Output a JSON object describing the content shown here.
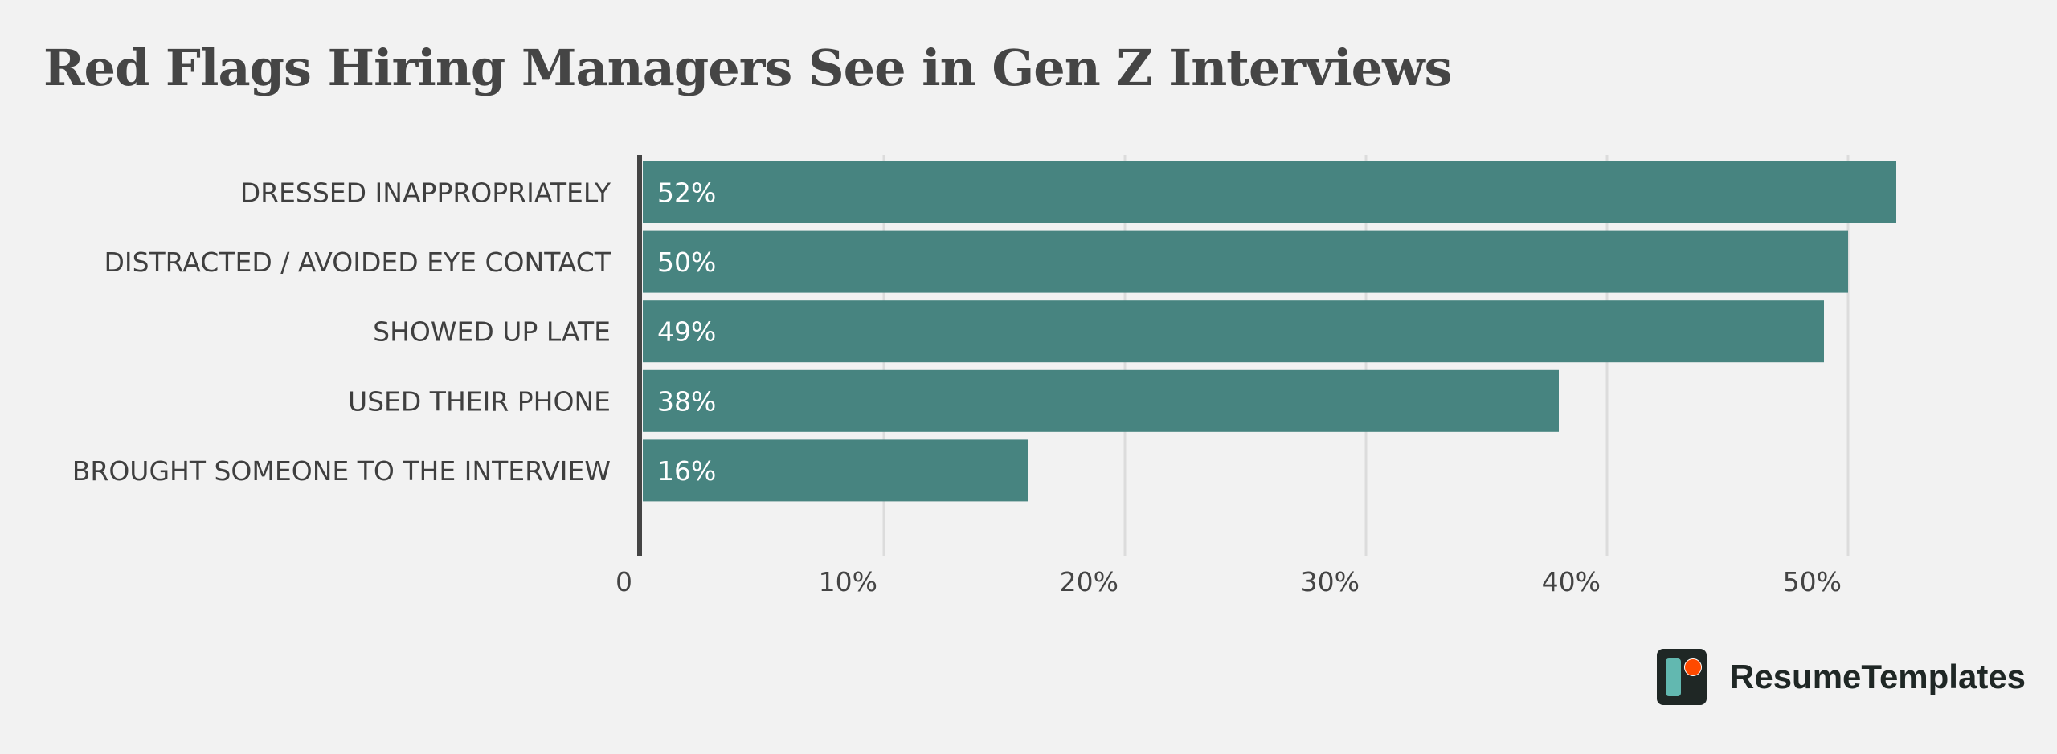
{
  "chart_data": {
    "type": "bar",
    "orientation": "horizontal",
    "title": "Red Flags Hiring Managers See in Gen Z Interviews",
    "categories": [
      "DRESSED INAPPROPRIATELY",
      "DISTRACTED / AVOIDED EYE CONTACT",
      "SHOWED UP LATE",
      "USED THEIR PHONE",
      "BROUGHT SOMEONE TO THE INTERVIEW"
    ],
    "values": [
      52,
      50,
      49,
      38,
      16
    ],
    "value_labels": [
      "52%",
      "50%",
      "49%",
      "38%",
      "16%"
    ],
    "xlim": [
      0,
      55
    ],
    "ticks": [
      0,
      10,
      20,
      30,
      40,
      50
    ],
    "tick_labels": [
      "0",
      "10%",
      "20%",
      "30%",
      "40%",
      "50%"
    ],
    "xlabel": "",
    "ylabel": "",
    "grid": true,
    "bar_color": "#478480"
  },
  "brand": {
    "name": "ResumeTemplates",
    "logo_colors": [
      "#1f2725",
      "#62b8b0",
      "#ff4a00"
    ]
  }
}
